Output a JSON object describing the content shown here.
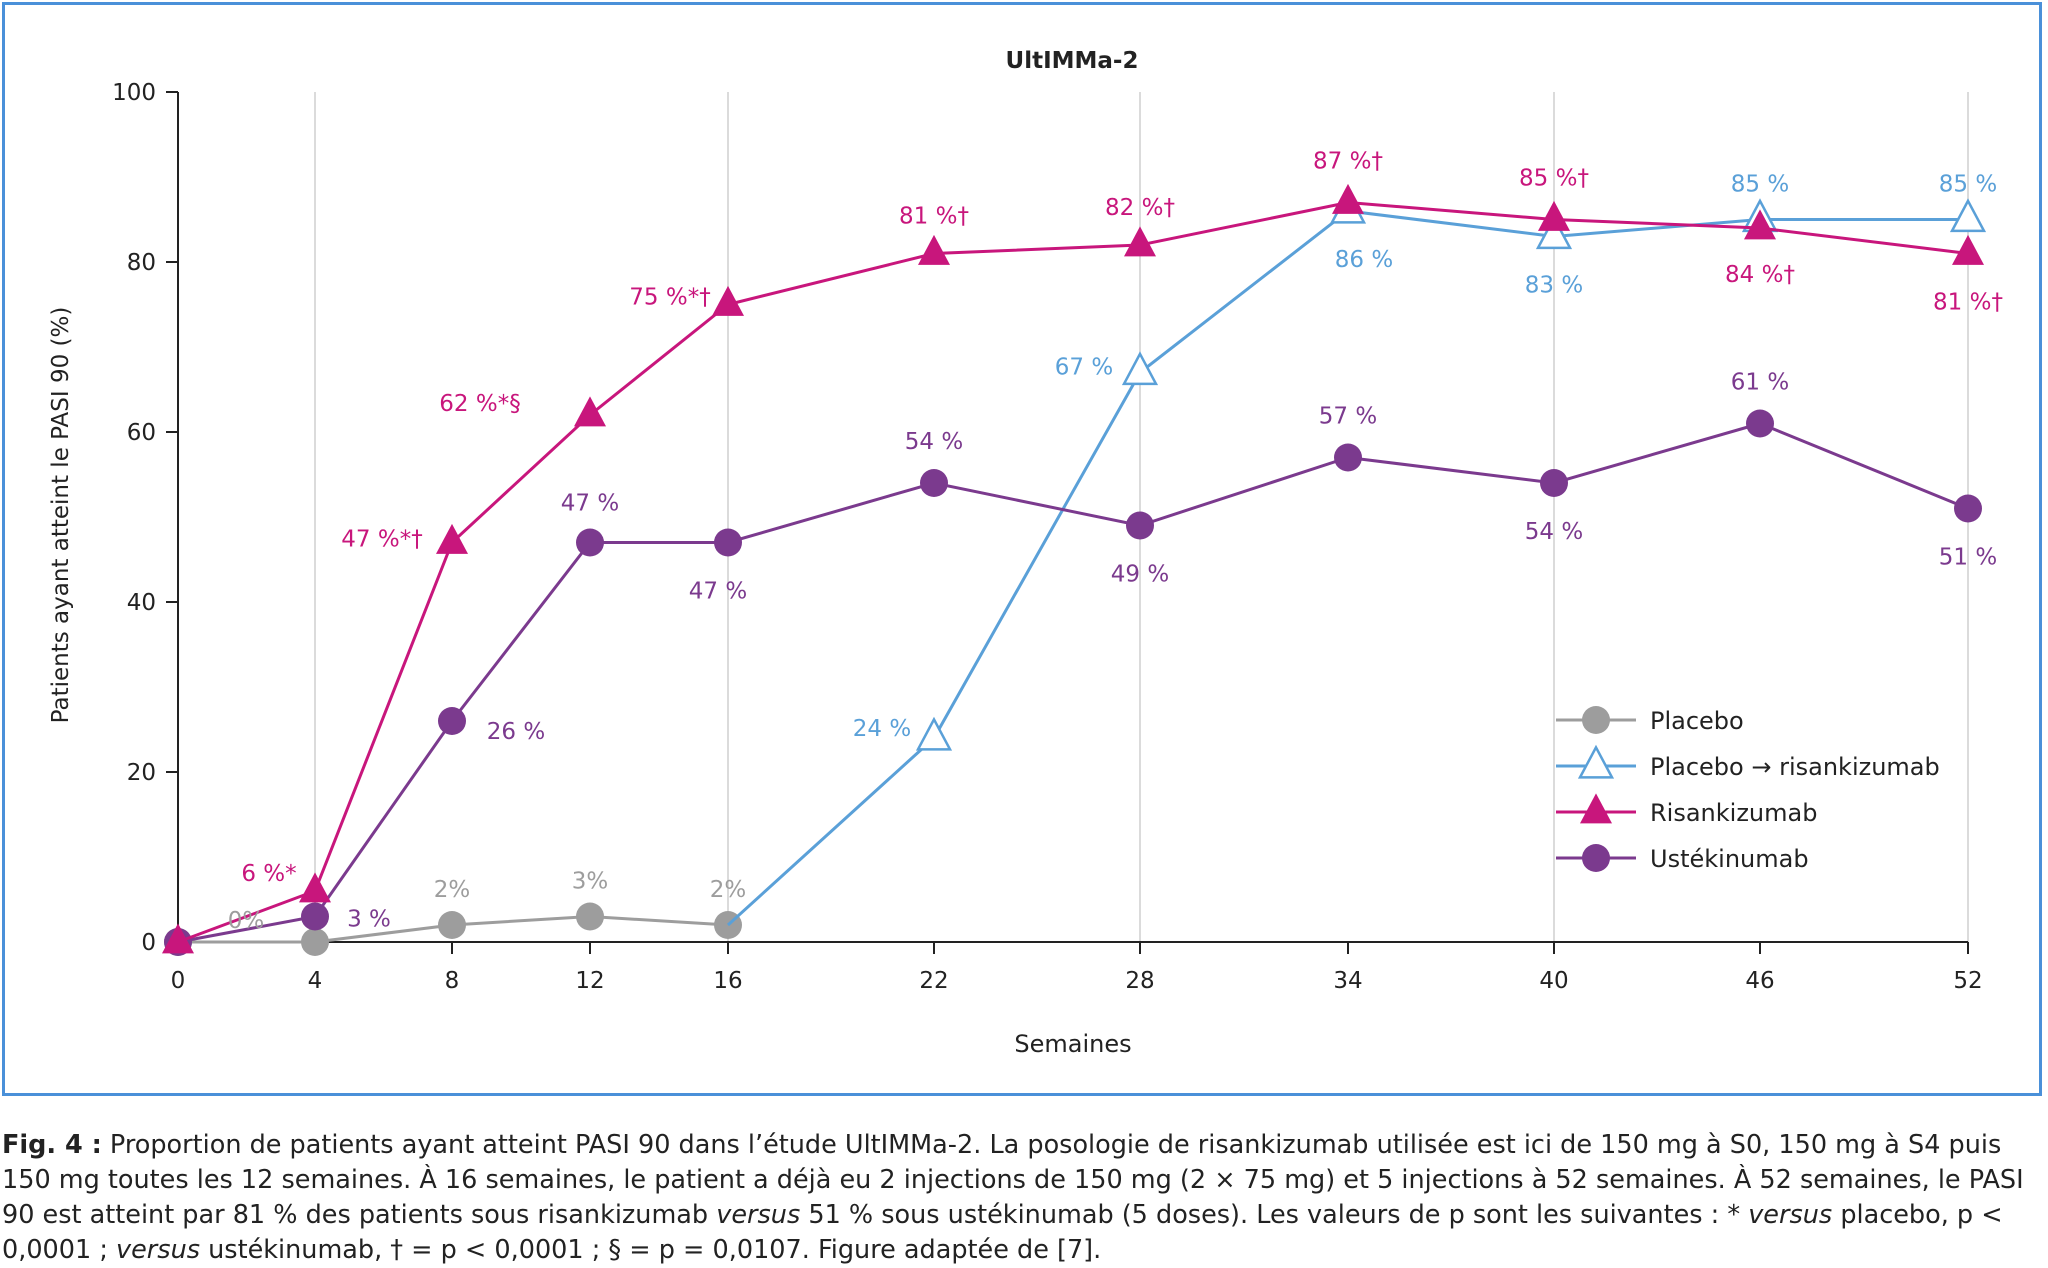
{
  "chart_data": {
    "type": "line",
    "title": "UltIMMa-2",
    "xlabel": "Semaines",
    "ylabel": "Patients ayant atteint le PASI 90 (%)",
    "ylim": [
      0,
      100
    ],
    "yticks": [
      "0",
      "20",
      "40",
      "60",
      "80",
      "100"
    ],
    "categories": [
      "0",
      "4",
      "8",
      "12",
      "16",
      "22",
      "28",
      "34",
      "40",
      "46",
      "52"
    ],
    "legend_position": "bottom-right",
    "series": [
      {
        "name": "Placebo",
        "color": "#9d9d9d",
        "marker": "circle-filled",
        "x": [
          0,
          4,
          8,
          12,
          16
        ],
        "values": [
          0,
          0,
          2,
          3,
          2
        ],
        "labels": [
          "0%",
          "",
          "2%",
          "3%",
          "2%"
        ]
      },
      {
        "name": "Placebo → risankizumab",
        "color": "#5aa0d8",
        "marker": "triangle-open",
        "x": [
          16,
          22,
          28,
          34,
          40,
          46,
          52
        ],
        "values": [
          2,
          24,
          67,
          86,
          83,
          85,
          85
        ],
        "labels": [
          "",
          "24 %",
          "67 %",
          "86 %",
          "83 %",
          "85 %",
          "85 %"
        ]
      },
      {
        "name": "Risankizumab",
        "color": "#c8167c",
        "marker": "triangle-filled",
        "x": [
          0,
          4,
          8,
          12,
          16,
          22,
          28,
          34,
          40,
          46,
          52
        ],
        "values": [
          0,
          6,
          47,
          62,
          75,
          81,
          82,
          87,
          85,
          84,
          81
        ],
        "labels": [
          "",
          "6 %*",
          "47 %*†",
          "62 %*§",
          "75 %*†",
          "81 %†",
          "82 %†",
          "87 %†",
          "85 %†",
          "84 %†",
          "81 %†"
        ]
      },
      {
        "name": "Ustékinumab",
        "color": "#7b3a8e",
        "marker": "circle-filled",
        "x": [
          0,
          4,
          8,
          12,
          16,
          22,
          28,
          34,
          40,
          46,
          52
        ],
        "values": [
          0,
          3,
          26,
          47,
          47,
          54,
          49,
          57,
          54,
          61,
          51
        ],
        "labels": [
          "",
          "3 %",
          "26 %",
          "47 %",
          "47 %",
          "54 %",
          "49 %",
          "57 %",
          "54 %",
          "61 %",
          "51 %"
        ]
      }
    ]
  },
  "caption": {
    "label": "Fig. 4 :",
    "text_1": " Proportion de patients ayant atteint PASI 90 dans l’étude UltIMMa-2. La posologie de risankizumab utilisée est ici de 150 mg à S0, 150 mg à S4 puis 150 mg toutes les 12 semaines. À 16 semaines, le patient a déjà eu 2 injections de 150 mg (2 × 75 mg) et 5 injections à 52 semaines. À 52 semaines, le PASI 90 est atteint par 81 % des patients sous risankizumab ",
    "versus_1": "versus",
    "text_2": " 51 % sous ustékinumab (5 doses). Les valeurs de p sont les suivantes : * ",
    "versus_2": "versus",
    "text_3": " placebo, p < 0,0001 ; ",
    "versus_3": "versus",
    "text_4": " ustékinumab, † = p < 0,0001 ; § = p = 0,0107. Figure adaptée de [7]."
  }
}
